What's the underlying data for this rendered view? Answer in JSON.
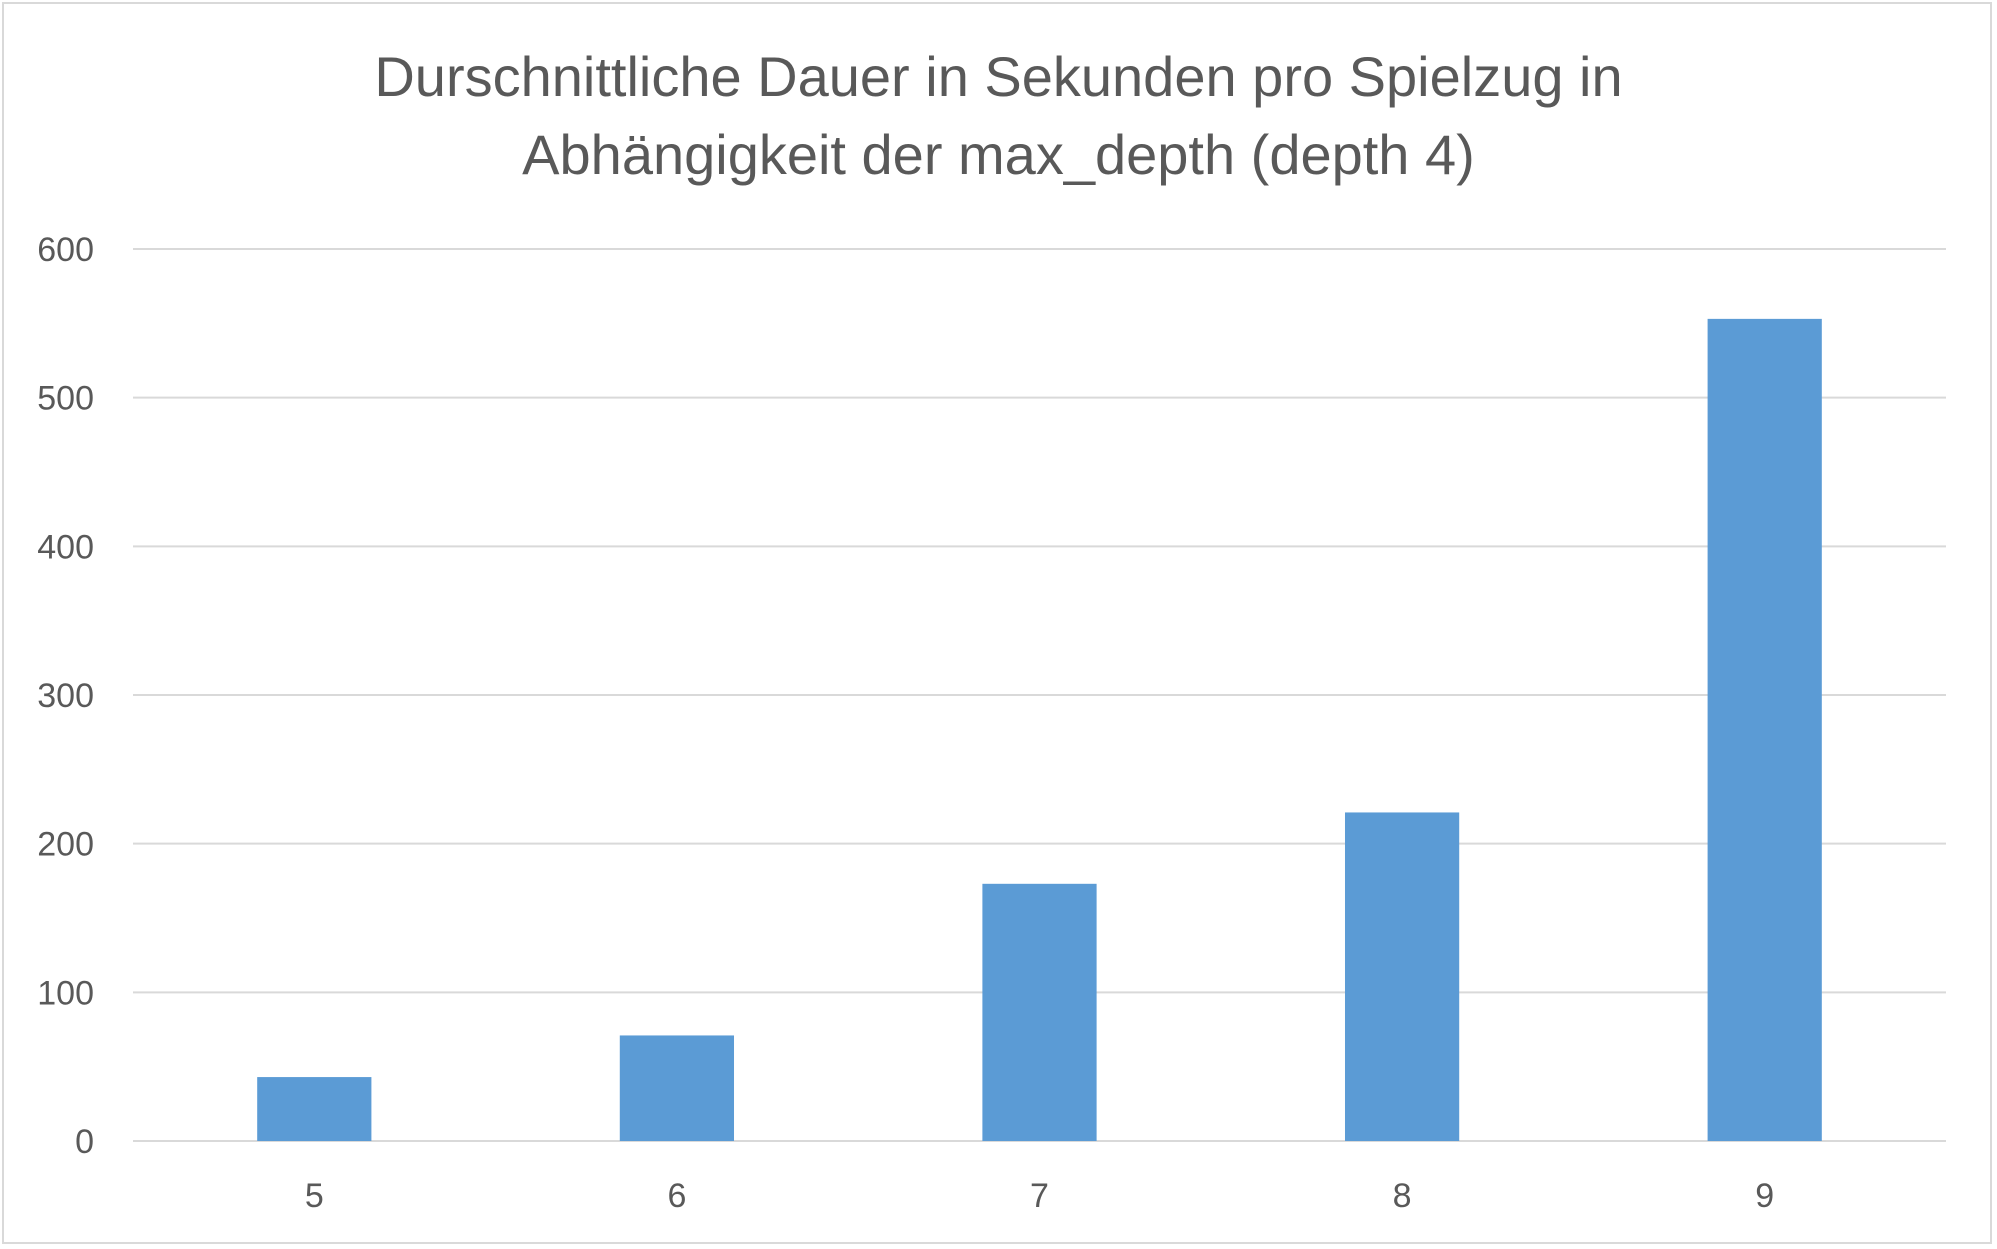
{
  "chart_data": {
    "type": "bar",
    "title": "Durschnittliche Dauer in Sekunden pro Spielzug in\nAbhängigkeit der max_depth (depth 4)",
    "categories": [
      "5",
      "6",
      "7",
      "8",
      "9"
    ],
    "values": [
      43,
      71,
      173,
      221,
      553
    ],
    "xlabel": "",
    "ylabel": "",
    "ylim": [
      0,
      600
    ],
    "yticks": [
      "0",
      "100",
      "200",
      "300",
      "400",
      "500",
      "600"
    ],
    "grid": true,
    "legend": "none",
    "bar_color": "#5b9bd5",
    "grid_color": "#d9d9d9"
  }
}
